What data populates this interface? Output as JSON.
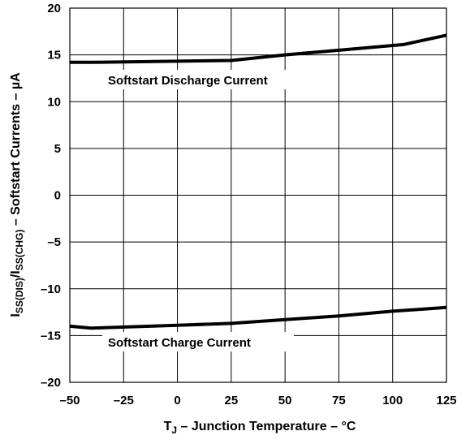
{
  "chart_data": {
    "type": "line",
    "xlabel_parts": [
      "T",
      "J",
      " – Junction Temperature – °C"
    ],
    "ylabel_parts": [
      "I",
      "SS(DIS)",
      "/I",
      "SS(CHG)",
      " – Softstart Currents – µA"
    ],
    "xlim": [
      -50,
      125
    ],
    "ylim": [
      -20,
      20
    ],
    "x_ticks": [
      -50,
      -25,
      0,
      25,
      50,
      75,
      100,
      125
    ],
    "y_ticks": [
      20,
      15,
      10,
      5,
      0,
      -5,
      -10,
      -15,
      -20
    ],
    "x_tick_labels": [
      "–50",
      "–25",
      "0",
      "25",
      "50",
      "75",
      "100",
      "125"
    ],
    "y_tick_labels": [
      "20",
      "15",
      "10",
      "5",
      "0",
      "–5",
      "–10",
      "–15",
      "–20"
    ],
    "grid": true,
    "series": [
      {
        "name": "Softstart Discharge Current",
        "x": [
          -50,
          -40,
          25,
          50,
          75,
          105,
          125
        ],
        "y": [
          14.2,
          14.2,
          14.4,
          15.0,
          15.5,
          16.1,
          17.1
        ]
      },
      {
        "name": "Softstart Charge Current",
        "x": [
          -50,
          -40,
          0,
          25,
          50,
          75,
          100,
          125
        ],
        "y": [
          -14.0,
          -14.2,
          -13.9,
          -13.7,
          -13.3,
          -12.9,
          -12.4,
          -12.0
        ]
      }
    ]
  }
}
